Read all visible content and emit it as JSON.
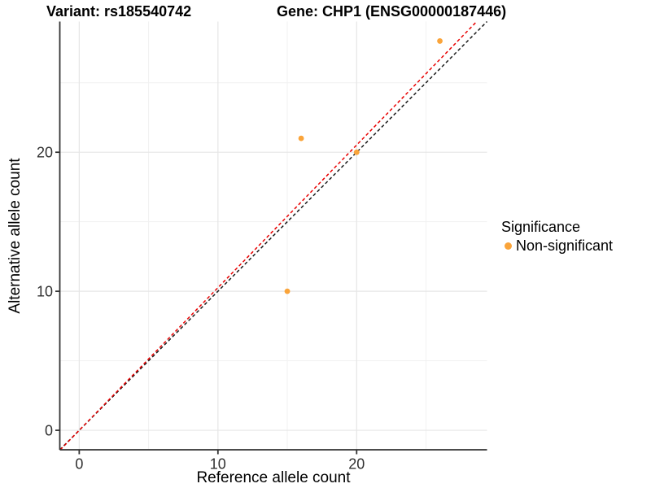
{
  "header": {
    "variant_title": "Variant: rs185540742",
    "gene_title": "Gene: CHP1 (ENSG00000187446)"
  },
  "axes": {
    "x_label": "Reference allele count",
    "y_label": "Alternative allele count"
  },
  "legend": {
    "title": "Significance",
    "items": [
      {
        "label": "Non-significant",
        "color": "#FAA43A"
      }
    ]
  },
  "chart_data": {
    "type": "scatter",
    "xlabel": "Reference allele count",
    "ylabel": "Alternative allele count",
    "xlim": [
      -1.4,
      29.4
    ],
    "ylim": [
      -1.4,
      29.4
    ],
    "x_major_ticks": [
      0,
      10,
      20
    ],
    "y_major_ticks": [
      0,
      10,
      20
    ],
    "x_minor_gridlines": [
      5,
      15,
      25
    ],
    "y_minor_gridlines": [
      5,
      15,
      25
    ],
    "grid": "major+minor",
    "legend_position": "right",
    "series": [
      {
        "name": "Non-significant",
        "color": "#FAA43A",
        "points": [
          [
            15,
            10
          ],
          [
            16,
            21
          ],
          [
            20,
            20
          ],
          [
            26,
            28
          ]
        ]
      }
    ],
    "reference_lines": [
      {
        "name": "black-dashed-identity",
        "slope": 1.0,
        "intercept": 0,
        "color": "#1A1A1A",
        "linetype": "dashed"
      },
      {
        "name": "red-dashed-ratio",
        "slope": 1.026,
        "intercept": 0,
        "color": "#E80000",
        "linetype": "dashed"
      }
    ],
    "colors": {
      "major_grid": "#E6E6E6",
      "minor_grid": "#F1F1F1",
      "axis_line": "#333333",
      "tick_label": "#303030"
    }
  }
}
